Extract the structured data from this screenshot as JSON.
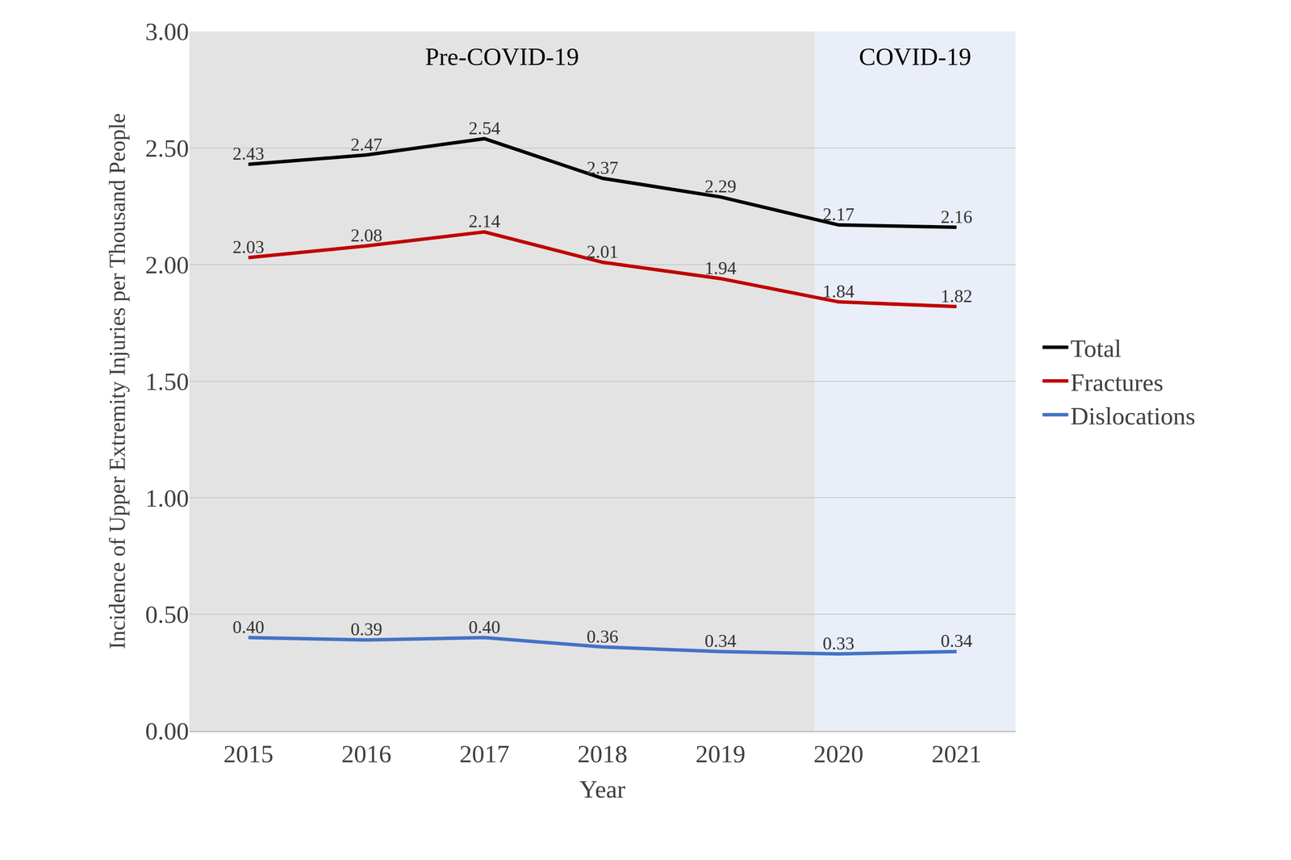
{
  "chart_data": {
    "type": "line",
    "x_label": "Year",
    "y_label": "Incidence of Upper Extremity Injuries per Thousand People",
    "x": [
      2015,
      2016,
      2017,
      2018,
      2019,
      2020,
      2021
    ],
    "xlim": [
      2014.5,
      2021.5
    ],
    "xticks": [
      2015,
      2016,
      2017,
      2018,
      2019,
      2020,
      2021
    ],
    "ylim": [
      0,
      3
    ],
    "yticks": [
      {
        "value": 0,
        "label": "0.00"
      },
      {
        "value": 0.5,
        "label": "0.50"
      },
      {
        "value": 1,
        "label": "1.00"
      },
      {
        "value": 1.5,
        "label": "1.50"
      },
      {
        "value": 2,
        "label": "2.00"
      },
      {
        "value": 2.5,
        "label": "2.50"
      },
      {
        "value": 3,
        "label": "3.00"
      }
    ],
    "grid": true,
    "legend": "right",
    "data_labels": true,
    "periods": [
      {
        "label": "Pre-COVID-19",
        "start": 2014.5,
        "end": 2019.8,
        "color": "#e3e3e3"
      },
      {
        "label": "COVID-19",
        "start": 2019.8,
        "end": 2021.5,
        "color": "#e9eef8"
      }
    ],
    "series": [
      {
        "name": "Total",
        "color": "#000000",
        "values": [
          2.43,
          2.47,
          2.54,
          2.37,
          2.29,
          2.17,
          2.16
        ],
        "value_labels": [
          "2.43",
          "2.47",
          "2.54",
          "2.37",
          "2.29",
          "2.17",
          "2.16"
        ]
      },
      {
        "name": "Fractures",
        "color": "#c00000",
        "values": [
          2.03,
          2.08,
          2.14,
          2.01,
          1.94,
          1.84,
          1.82
        ],
        "value_labels": [
          "2.03",
          "2.08",
          "2.14",
          "2.01",
          "1.94",
          "1.84",
          "1.82"
        ]
      },
      {
        "name": "Dislocations",
        "color": "#4472c4",
        "values": [
          0.4,
          0.39,
          0.4,
          0.36,
          0.34,
          0.33,
          0.34
        ],
        "value_labels": [
          "0.40",
          "0.39",
          "0.40",
          "0.36",
          "0.34",
          "0.33",
          "0.34"
        ]
      }
    ]
  }
}
